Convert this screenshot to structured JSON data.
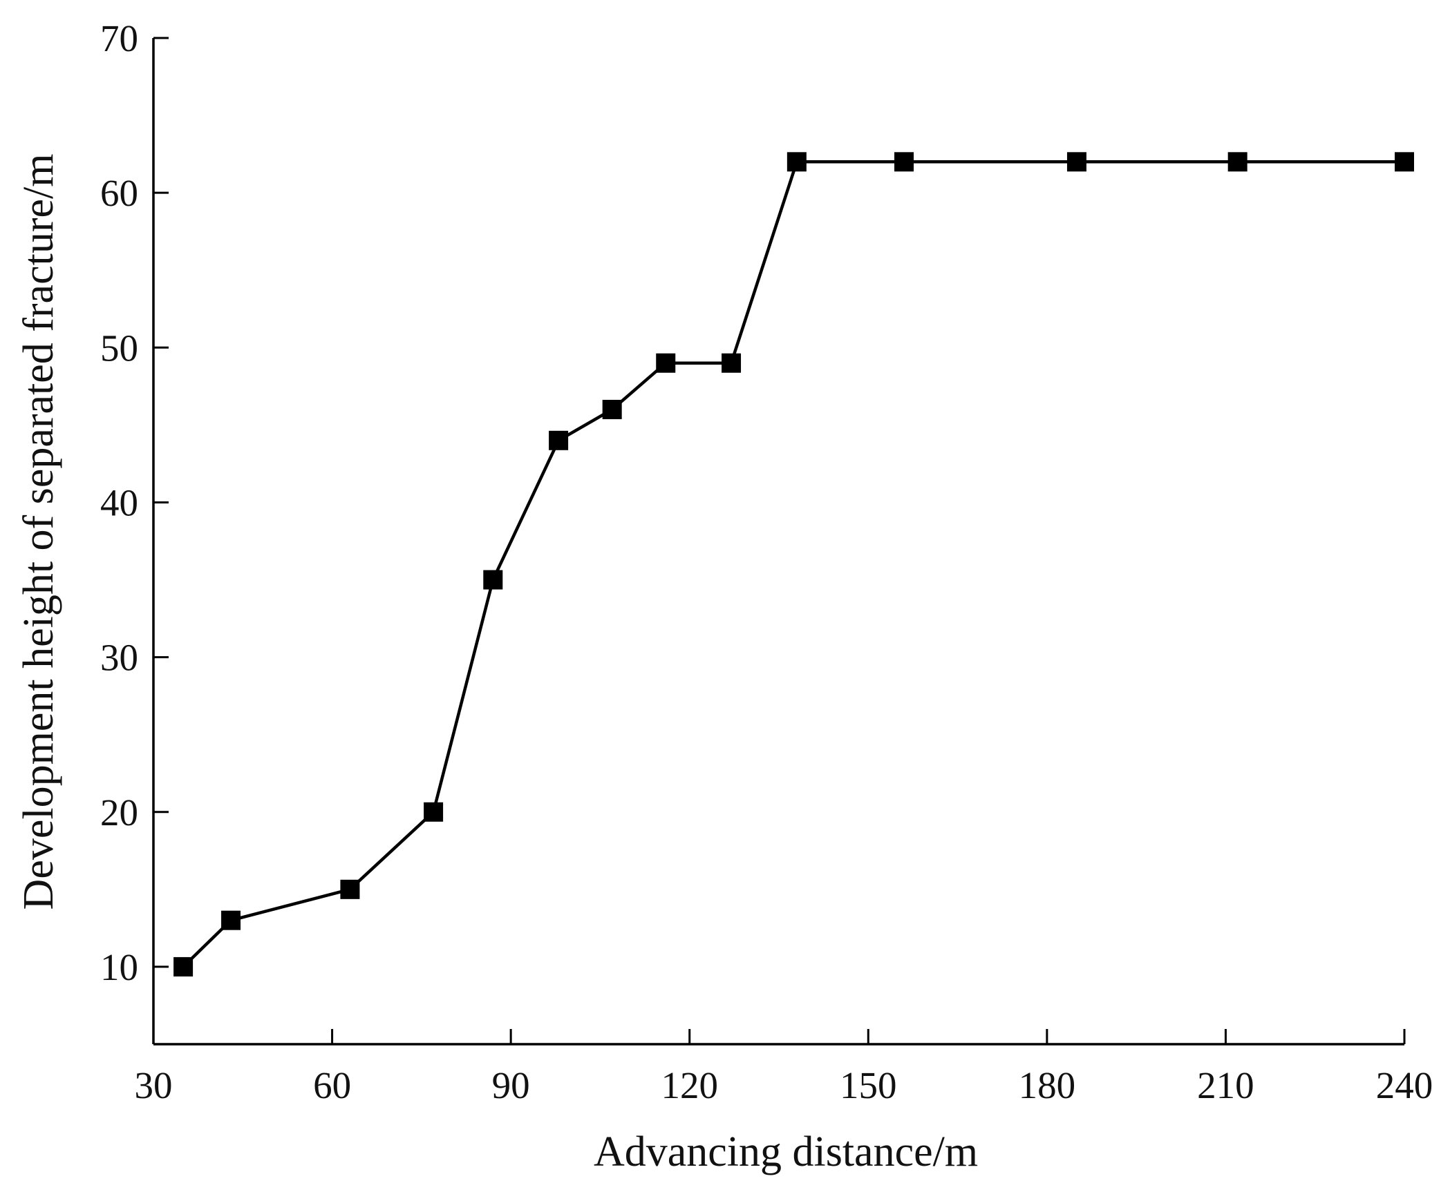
{
  "chart_data": {
    "type": "line",
    "title": "",
    "xlabel": "Advancing distance/m",
    "ylabel": "Development height of separated fracture/m",
    "xlim": [
      30,
      240
    ],
    "ylim": [
      5,
      70
    ],
    "x_ticks": [
      30,
      60,
      90,
      120,
      150,
      180,
      210,
      240
    ],
    "y_ticks": [
      10,
      20,
      30,
      40,
      50,
      60,
      70
    ],
    "grid": false,
    "legend": "none",
    "series": [
      {
        "marker": "square",
        "color": "#000000",
        "x": [
          35,
          43,
          63,
          77,
          87,
          98,
          107,
          116,
          127,
          138,
          156,
          185,
          212,
          240
        ],
        "y": [
          10,
          13,
          15,
          20,
          35,
          44,
          46,
          49,
          49,
          62,
          62,
          62,
          62,
          62
        ]
      }
    ]
  }
}
